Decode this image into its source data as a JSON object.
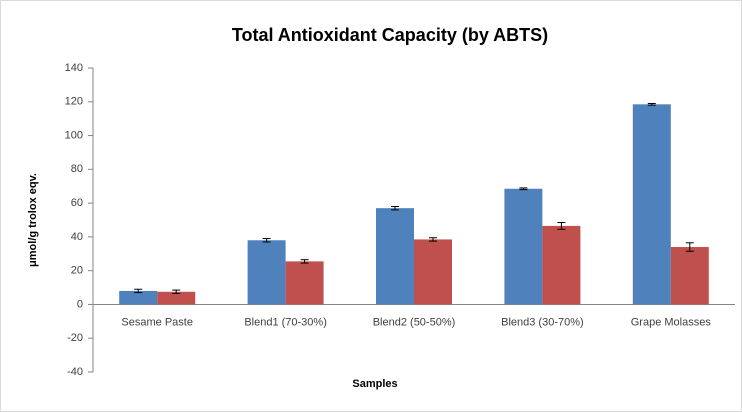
{
  "chart_data": {
    "type": "bar",
    "title": "Total Antioxidant Capacity (by ABTS)",
    "x_label": "Samples",
    "y_label": "μmol/g  trolox eqv.",
    "categories": [
      "Sesame Paste",
      "Blend1 (70-30%)",
      "Blend2 (50-50%)",
      "Blend3 (30-70%)",
      "Grape Molasses"
    ],
    "series": [
      {
        "color": "#4f81bd",
        "values": [
          8,
          38,
          57,
          68.5,
          118.5
        ],
        "errors": [
          1,
          1,
          1,
          0.5,
          0.5
        ]
      },
      {
        "color": "#c0504d",
        "values": [
          7.5,
          25.5,
          38.5,
          46.5,
          34
        ],
        "errors": [
          1,
          1,
          1,
          2,
          2.5
        ]
      }
    ],
    "ylim": [
      -40,
      140
    ],
    "yticks": [
      -40,
      -20,
      0,
      20,
      40,
      60,
      80,
      100,
      120,
      140
    ],
    "grid": false
  }
}
